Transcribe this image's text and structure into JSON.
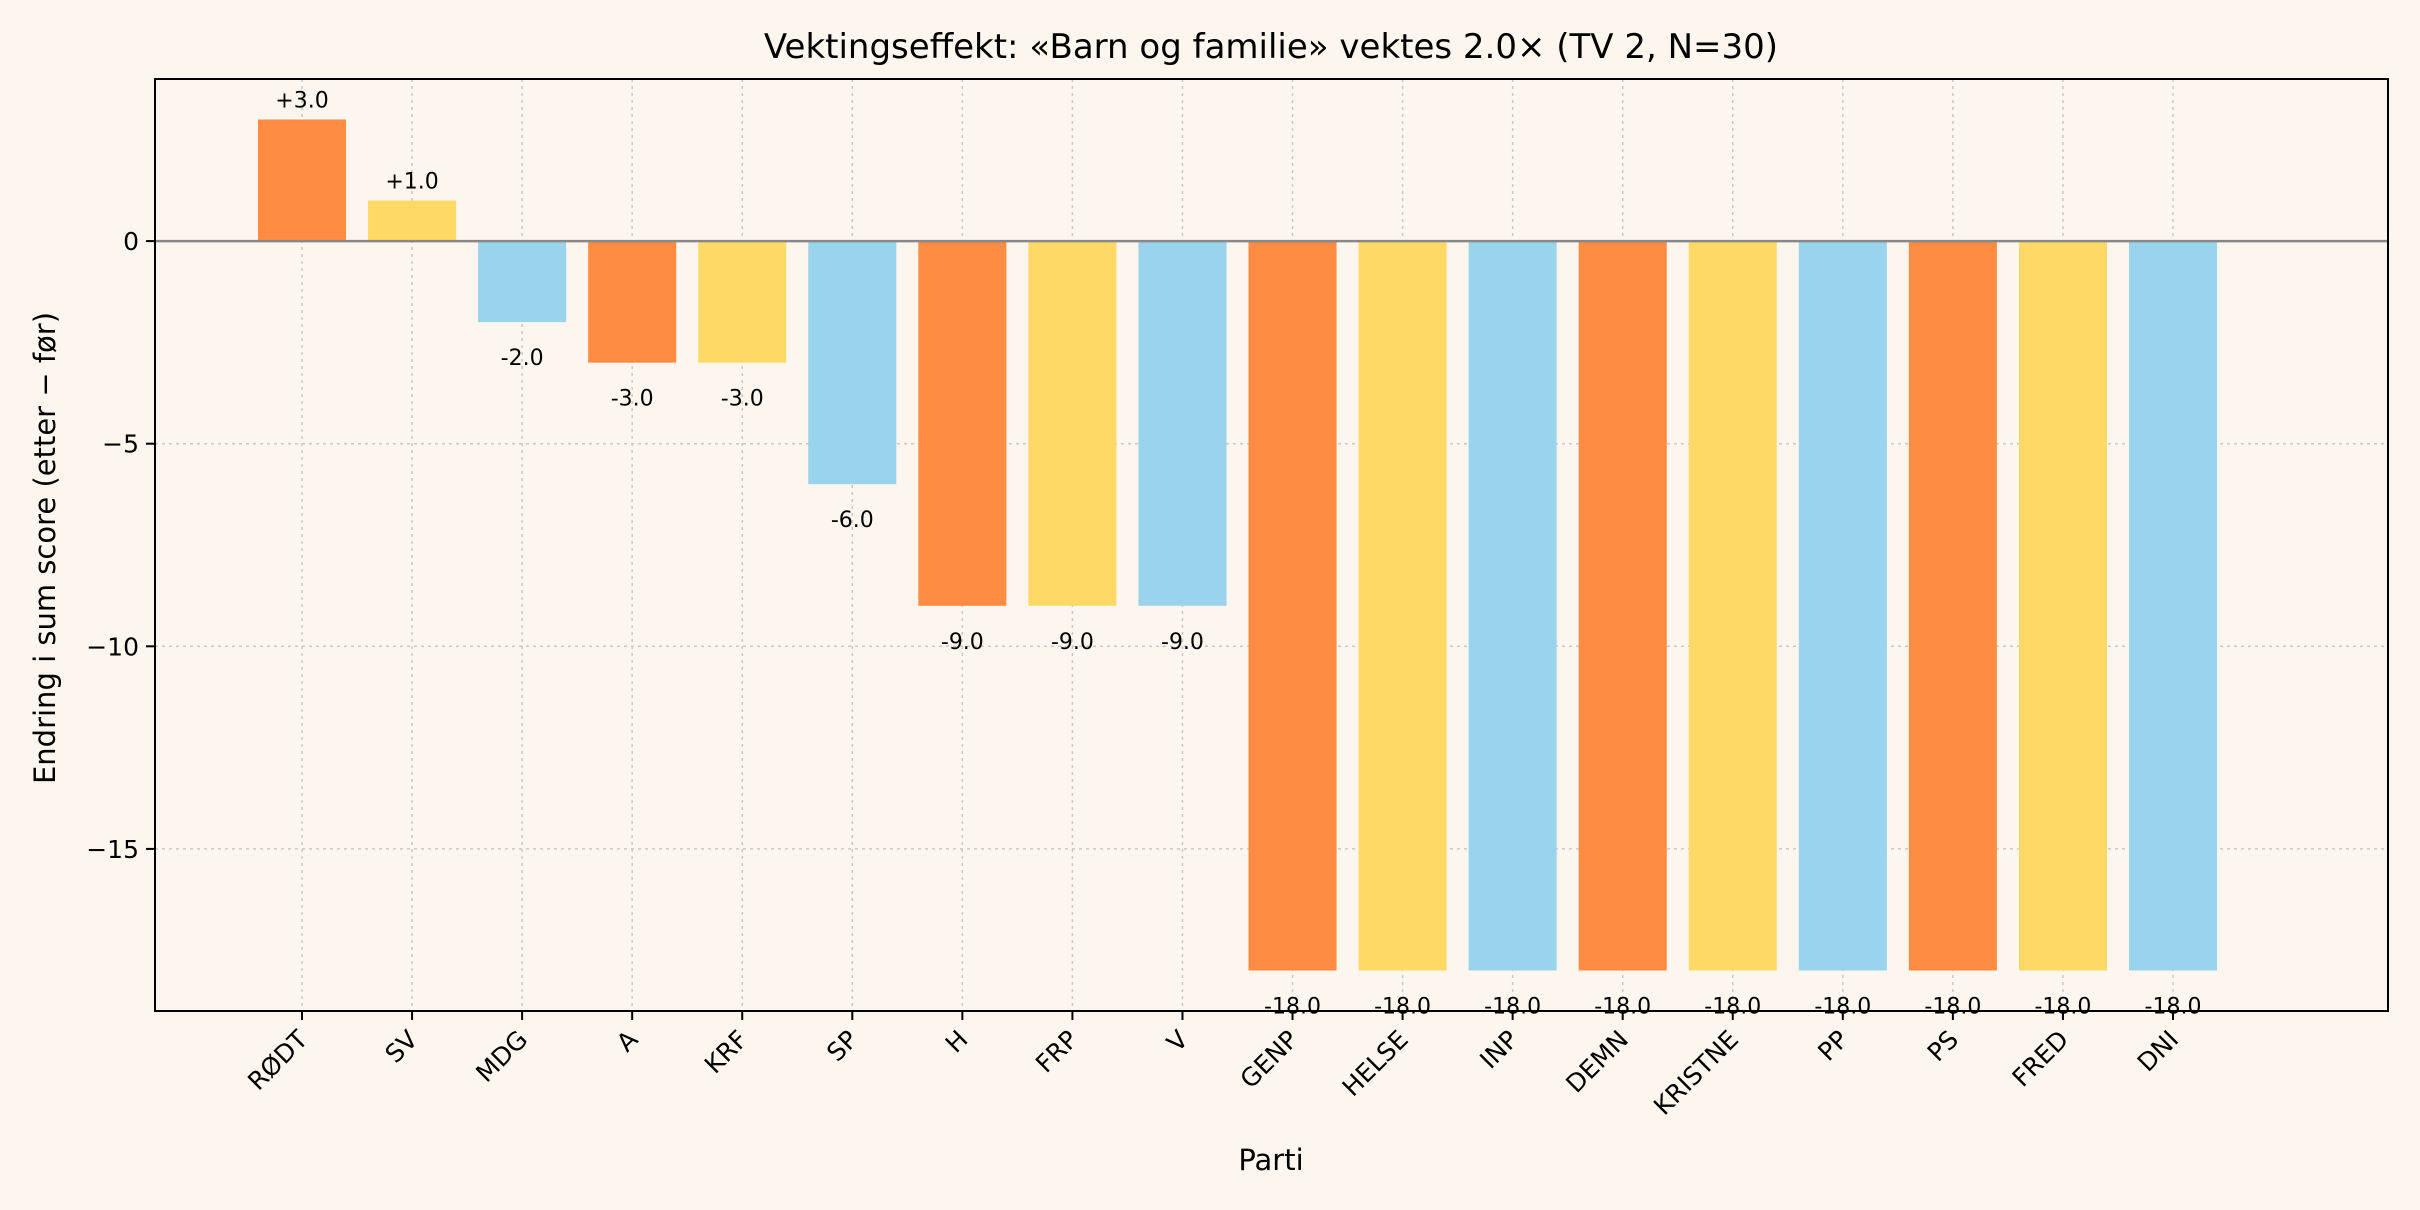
{
  "chart_data": {
    "type": "bar",
    "title": "Vektingseffekt: «Barn og familie» vektes 2.0× (TV 2, N=30)",
    "xlabel": "Parti",
    "ylabel": "Endring i sum score (etter − før)",
    "categories": [
      "RØDT",
      "SV",
      "MDG",
      "A",
      "KRF",
      "SP",
      "H",
      "FRP",
      "V",
      "GENP",
      "HELSE",
      "INP",
      "DEMN",
      "KRISTNE",
      "PP",
      "PS",
      "FRED",
      "DNI"
    ],
    "values": [
      3.0,
      1.0,
      -2.0,
      -3.0,
      -3.0,
      -6.0,
      -9.0,
      -9.0,
      -9.0,
      -18.0,
      -18.0,
      -18.0,
      -18.0,
      -18.0,
      -18.0,
      -18.0,
      -18.0,
      -18.0
    ],
    "value_labels": [
      "+3.0",
      "+1.0",
      "-2.0",
      "-3.0",
      "-3.0",
      "-6.0",
      "-9.0",
      "-9.0",
      "-9.0",
      "-18.0",
      "-18.0",
      "-18.0",
      "-18.0",
      "-18.0",
      "-18.0",
      "-18.0",
      "-18.0",
      "-18.0"
    ],
    "ylim": [
      -19.0,
      4.0
    ],
    "yticks": [
      0,
      -5,
      -10,
      -15
    ],
    "ytick_labels": [
      "0",
      "−5",
      "−10",
      "−15"
    ],
    "grid": true,
    "colors": [
      "#ff8c42",
      "#ffd966",
      "#99d3ec"
    ],
    "background": "#fdf6ee"
  }
}
